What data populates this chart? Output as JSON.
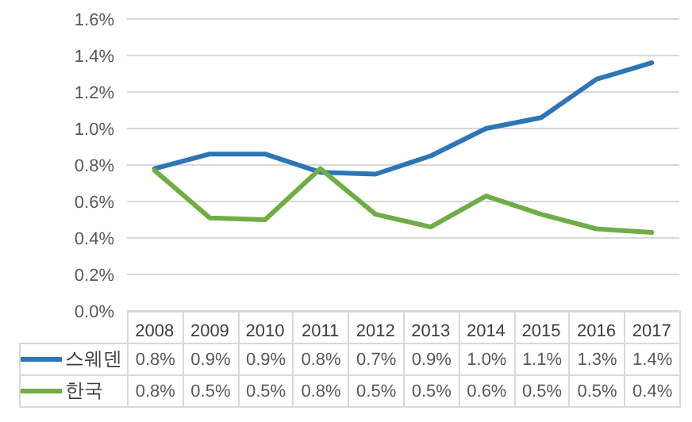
{
  "chart_data": {
    "type": "line",
    "categories": [
      "2008",
      "2009",
      "2010",
      "2011",
      "2012",
      "2013",
      "2014",
      "2015",
      "2016",
      "2017"
    ],
    "series": [
      {
        "name": "스웨덴",
        "color": "#2e75b6",
        "values": [
          0.78,
          0.86,
          0.86,
          0.76,
          0.75,
          0.85,
          1.0,
          1.06,
          1.27,
          1.36
        ],
        "value_labels": [
          "0.8%",
          "0.9%",
          "0.9%",
          "0.8%",
          "0.7%",
          "0.9%",
          "1.0%",
          "1.1%",
          "1.3%",
          "1.4%"
        ]
      },
      {
        "name": "한국",
        "color": "#70ad47",
        "values": [
          0.77,
          0.51,
          0.5,
          0.78,
          0.53,
          0.46,
          0.63,
          0.53,
          0.45,
          0.43
        ],
        "value_labels": [
          "0.8%",
          "0.5%",
          "0.5%",
          "0.8%",
          "0.5%",
          "0.5%",
          "0.6%",
          "0.5%",
          "0.5%",
          "0.4%"
        ]
      }
    ],
    "ylim": [
      0,
      1.6
    ],
    "yticks": [
      {
        "value": 0,
        "label": "0.0%"
      },
      {
        "value": 0.2,
        "label": "0.2%"
      },
      {
        "value": 0.4,
        "label": "0.4%"
      },
      {
        "value": 0.6,
        "label": "0.6%"
      },
      {
        "value": 0.8,
        "label": "0.8%"
      },
      {
        "value": 1.0,
        "label": "1.0%"
      },
      {
        "value": 1.2,
        "label": "1.2%"
      },
      {
        "value": 1.4,
        "label": "1.4%"
      },
      {
        "value": 1.6,
        "label": "1.6%"
      }
    ],
    "grid": "y",
    "legend": "bottom",
    "marker": "none",
    "line_style": "solid"
  }
}
